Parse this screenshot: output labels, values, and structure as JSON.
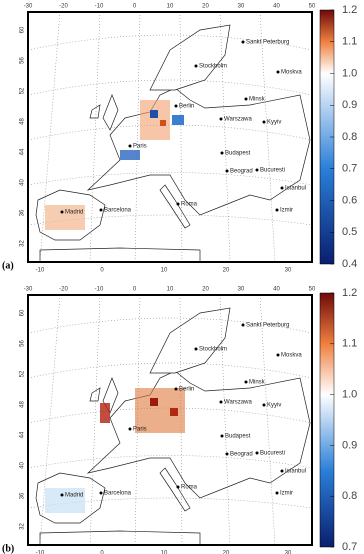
{
  "cities": [
    "Sankt Peterburg",
    "Stockholm",
    "Moskva",
    "Minsk",
    "Berlin",
    "Warszawa",
    "Kyyiv",
    "Paris",
    "Budapest",
    "Beograd",
    "Bucuresti",
    "Istanbul",
    "Madrid",
    "Barcelona",
    "Roma",
    "Izmir"
  ],
  "panels": [
    {
      "label": "(a)",
      "top_ticks": [
        -30,
        -20,
        -10,
        0,
        10,
        20,
        30,
        40,
        50
      ],
      "bottom_ticks": [
        -10,
        0,
        10,
        20,
        30
      ],
      "lat_ticks": [
        60,
        56,
        52,
        48,
        44,
        40,
        36,
        32
      ],
      "colorbar": {
        "range": [
          0.4,
          1.2
        ],
        "ticks": [
          1.2,
          1.1,
          {
            "value": 1,
            "label": "1.0"
          },
          0.9,
          0.8,
          0.7,
          0.6,
          0.5,
          0.4
        ]
      }
    },
    {
      "label": "(b)",
      "top_ticks": [
        -30,
        -20,
        -10,
        0,
        10,
        20,
        30,
        40,
        50
      ],
      "bottom_ticks": [
        -10,
        0,
        10,
        20,
        30
      ],
      "lat_ticks": [
        60,
        56,
        52,
        48,
        44,
        40,
        36,
        32
      ],
      "colorbar": {
        "range": [
          0.7,
          1.2
        ],
        "ticks": [
          1.2,
          1.1,
          {
            "value": 1,
            "label": "1.0"
          },
          0.9,
          0.8,
          0.7
        ]
      }
    }
  ]
}
